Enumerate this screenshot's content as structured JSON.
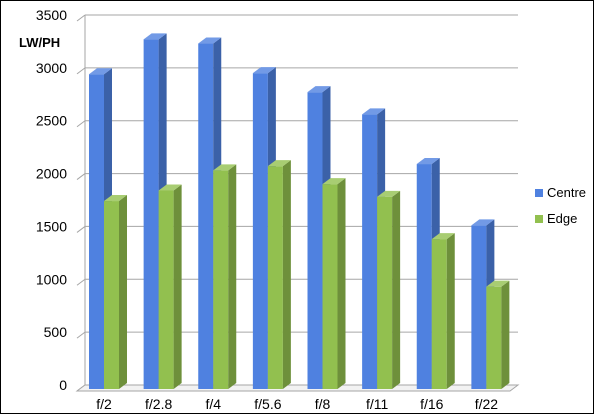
{
  "chart_data": {
    "type": "bar",
    "title": "",
    "xlabel": "",
    "ylabel": "LW/PH",
    "ylim": [
      0,
      3500
    ],
    "yticks": [
      0,
      500,
      1000,
      1500,
      2000,
      2500,
      3000,
      3500
    ],
    "categories": [
      "f/2",
      "f/2.8",
      "f/4",
      "f/5.6",
      "f/8",
      "f/11",
      "f/16",
      "f/22"
    ],
    "series": [
      {
        "name": "Centre",
        "color": "#4f81e0",
        "values": [
          2940,
          3270,
          3230,
          2950,
          2770,
          2560,
          2090,
          1510
        ]
      },
      {
        "name": "Edge",
        "color": "#92c04f",
        "values": [
          1740,
          1840,
          2030,
          2070,
          1900,
          1780,
          1380,
          930
        ]
      }
    ],
    "grid": true,
    "legend": "right",
    "style": "3d-clustered-column"
  }
}
